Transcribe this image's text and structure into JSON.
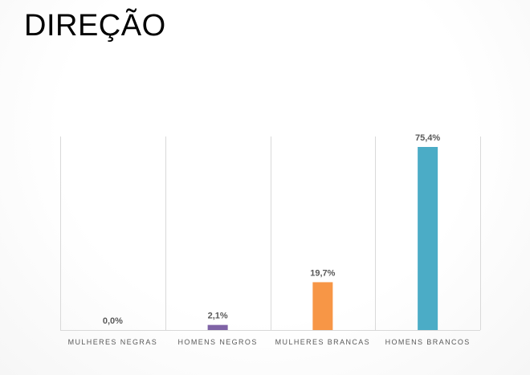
{
  "slide": {
    "title": "DIREÇÃO"
  },
  "chart_data": {
    "type": "bar",
    "categories": [
      "MULHERES NEGRAS",
      "HOMENS NEGROS",
      "MULHERES BRANCAS",
      "HOMENS BRANCOS"
    ],
    "values": [
      0.0,
      2.1,
      19.7,
      75.4
    ],
    "data_labels": [
      "0,0%",
      "2,1%",
      "19,7%",
      "75,4%"
    ],
    "colors": [
      "#7f63a6",
      "#7f63a6",
      "#f79646",
      "#4bacc6"
    ],
    "ylim": [
      0,
      80
    ],
    "grid": "vertical separators",
    "legend": "none"
  }
}
